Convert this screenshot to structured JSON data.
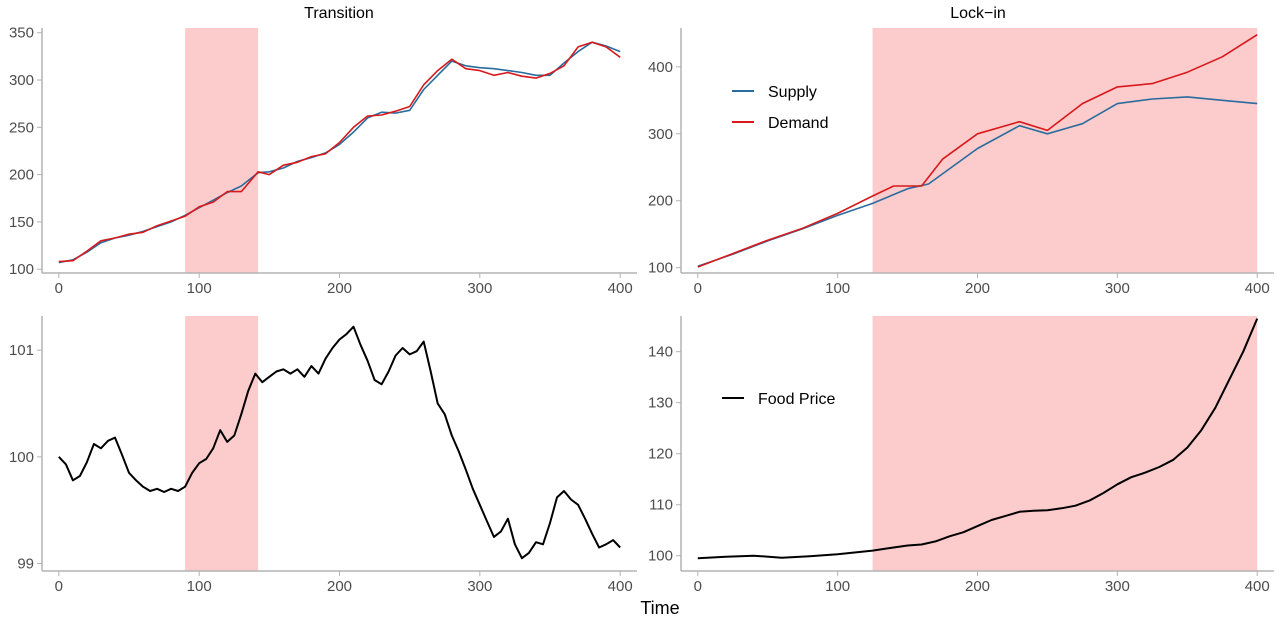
{
  "figure": {
    "xlabel": "Time",
    "shade_color": "#fccbcb",
    "axis_color": "#b3b3b3"
  },
  "chart_data": [
    {
      "id": "tl",
      "type": "line",
      "title": "Transition",
      "xlim": [
        -12,
        412
      ],
      "ylim": [
        96,
        355
      ],
      "xticks": [
        0,
        100,
        200,
        300,
        400
      ],
      "yticks": [
        100,
        150,
        200,
        250,
        300,
        350
      ],
      "shade": [
        90,
        142
      ],
      "series": [
        {
          "color": "#2a6c9e",
          "x": [
            0,
            10,
            20,
            30,
            40,
            50,
            60,
            70,
            80,
            90,
            100,
            110,
            120,
            130,
            142,
            150,
            160,
            170,
            180,
            190,
            200,
            210,
            220,
            230,
            240,
            250,
            260,
            270,
            280,
            290,
            300,
            310,
            320,
            330,
            340,
            350,
            360,
            370,
            380,
            390,
            400
          ],
          "y": [
            107,
            110,
            118,
            128,
            133,
            136,
            140,
            145,
            150,
            157,
            165,
            173,
            181,
            188,
            202,
            203,
            207,
            214,
            218,
            223,
            232,
            245,
            260,
            266,
            265,
            268,
            290,
            305,
            320,
            315,
            313,
            312,
            310,
            308,
            305,
            305,
            318,
            330,
            340,
            336,
            330
          ]
        },
        {
          "color": "#d7191c",
          "x": [
            0,
            10,
            20,
            30,
            40,
            50,
            60,
            70,
            80,
            90,
            100,
            110,
            120,
            130,
            142,
            150,
            160,
            170,
            180,
            190,
            200,
            210,
            220,
            230,
            240,
            250,
            260,
            270,
            280,
            290,
            300,
            310,
            320,
            330,
            340,
            350,
            360,
            370,
            380,
            390,
            400
          ],
          "y": [
            108,
            109,
            119,
            130,
            133,
            137,
            139,
            146,
            151,
            156,
            166,
            171,
            182,
            182,
            203,
            200,
            210,
            213,
            219,
            222,
            234,
            250,
            262,
            263,
            267,
            272,
            295,
            310,
            322,
            312,
            310,
            305,
            308,
            304,
            302,
            307,
            315,
            335,
            340,
            335,
            324
          ]
        }
      ]
    },
    {
      "id": "tr",
      "type": "line",
      "title": "Lock−in",
      "xlim": [
        -12,
        412
      ],
      "ylim": [
        92,
        458
      ],
      "xticks": [
        0,
        100,
        200,
        300,
        400
      ],
      "yticks": [
        100,
        200,
        300,
        400
      ],
      "shade": [
        125,
        400
      ],
      "legend": {
        "position": "top-left",
        "items": [
          {
            "label": "Supply",
            "color": "#2a6c9e"
          },
          {
            "label": "Demand",
            "color": "#d7191c"
          }
        ]
      },
      "series": [
        {
          "color": "#2a6c9e",
          "x": [
            0,
            25,
            50,
            75,
            100,
            125,
            150,
            165,
            200,
            230,
            250,
            275,
            300,
            325,
            350,
            375,
            400
          ],
          "y": [
            102,
            120,
            140,
            158,
            178,
            196,
            218,
            225,
            278,
            312,
            300,
            315,
            345,
            352,
            355,
            350,
            345
          ]
        },
        {
          "color": "#d7191c",
          "x": [
            0,
            25,
            50,
            75,
            100,
            125,
            140,
            160,
            175,
            200,
            230,
            250,
            275,
            300,
            325,
            350,
            375,
            400
          ],
          "y": [
            101,
            121,
            141,
            159,
            181,
            207,
            222,
            222,
            262,
            300,
            318,
            305,
            345,
            370,
            375,
            392,
            415,
            448
          ]
        }
      ]
    },
    {
      "id": "bl",
      "type": "line",
      "title": "",
      "xlim": [
        -12,
        412
      ],
      "ylim": [
        98.93,
        101.32
      ],
      "xticks": [
        0,
        100,
        200,
        300,
        400
      ],
      "yticks": [
        99,
        100,
        101
      ],
      "ytick_labels": [
        "99",
        "100",
        "101"
      ],
      "shade": [
        90,
        142
      ],
      "series": [
        {
          "color": "#000000",
          "x": [
            0,
            5,
            10,
            15,
            20,
            25,
            30,
            35,
            40,
            45,
            50,
            55,
            60,
            65,
            70,
            75,
            80,
            85,
            90,
            95,
            100,
            105,
            110,
            115,
            120,
            125,
            130,
            135,
            140,
            145,
            150,
            155,
            160,
            165,
            170,
            175,
            180,
            185,
            190,
            195,
            200,
            205,
            210,
            215,
            220,
            225,
            230,
            235,
            240,
            245,
            250,
            255,
            260,
            265,
            270,
            275,
            280,
            285,
            290,
            295,
            300,
            305,
            310,
            315,
            320,
            325,
            330,
            335,
            340,
            345,
            350,
            355,
            360,
            365,
            370,
            375,
            380,
            385,
            390,
            395,
            400
          ],
          "y": [
            100.0,
            99.93,
            99.78,
            99.82,
            99.95,
            100.12,
            100.08,
            100.15,
            100.18,
            100.02,
            99.85,
            99.78,
            99.72,
            99.68,
            99.7,
            99.67,
            99.7,
            99.68,
            99.72,
            99.85,
            99.94,
            99.98,
            100.08,
            100.25,
            100.14,
            100.2,
            100.4,
            100.62,
            100.78,
            100.7,
            100.75,
            100.8,
            100.82,
            100.78,
            100.82,
            100.75,
            100.85,
            100.78,
            100.92,
            101.02,
            101.1,
            101.15,
            101.22,
            101.05,
            100.9,
            100.72,
            100.68,
            100.8,
            100.95,
            101.02,
            100.96,
            100.99,
            101.08,
            100.8,
            100.5,
            100.4,
            100.2,
            100.05,
            99.88,
            99.7,
            99.55,
            99.4,
            99.25,
            99.3,
            99.42,
            99.18,
            99.05,
            99.1,
            99.2,
            99.18,
            99.38,
            99.62,
            99.68,
            99.6,
            99.55,
            99.42,
            99.28,
            99.15,
            99.18,
            99.22,
            99.15
          ]
        }
      ]
    },
    {
      "id": "br",
      "type": "line",
      "title": "",
      "xlim": [
        -12,
        412
      ],
      "ylim": [
        97,
        147
      ],
      "xticks": [
        0,
        100,
        200,
        300,
        400
      ],
      "yticks": [
        100,
        110,
        120,
        130,
        140
      ],
      "shade": [
        125,
        400
      ],
      "legend": {
        "position": "top-left",
        "items": [
          {
            "label": "Food Price",
            "color": "#000000"
          }
        ]
      },
      "series": [
        {
          "color": "#000000",
          "x": [
            0,
            20,
            40,
            60,
            80,
            100,
            125,
            140,
            150,
            160,
            170,
            180,
            190,
            200,
            210,
            220,
            230,
            240,
            250,
            260,
            270,
            280,
            290,
            300,
            310,
            320,
            330,
            340,
            350,
            360,
            370,
            380,
            390,
            400
          ],
          "y": [
            99.5,
            99.8,
            100.0,
            99.6,
            99.9,
            100.3,
            101.0,
            101.6,
            102.0,
            102.2,
            102.8,
            103.8,
            104.6,
            105.8,
            107.0,
            107.8,
            108.6,
            108.8,
            108.9,
            109.3,
            109.8,
            110.8,
            112.3,
            114.0,
            115.4,
            116.3,
            117.4,
            118.8,
            121.2,
            124.6,
            129.0,
            134.5,
            140.0,
            146.5
          ]
        }
      ]
    }
  ]
}
